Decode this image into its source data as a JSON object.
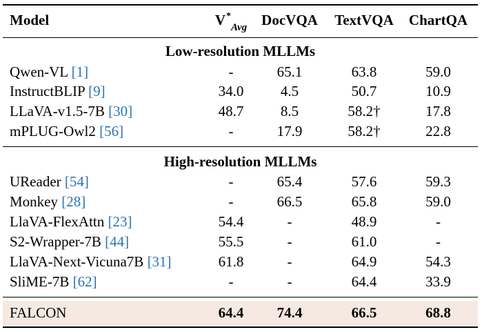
{
  "header": {
    "model": "Model",
    "v_base": "V",
    "v_sup": "*",
    "v_sub": "Avg",
    "docvqa": "DocVQA",
    "textvqa": "TextVQA",
    "chartqa": "ChartQA"
  },
  "sections": {
    "low": "Low-resolution MLLMs",
    "high": "High-resolution MLLMs"
  },
  "low_rows": [
    {
      "name": "Qwen-VL",
      "ref": "[1]",
      "v": "-",
      "doc": "65.1",
      "text": "63.8",
      "chart": "59.0"
    },
    {
      "name": "InstructBLIP",
      "ref": "[9]",
      "v": "34.0",
      "doc": "4.5",
      "text": "50.7",
      "chart": "10.9"
    },
    {
      "name": "LLaVA-v1.5-7B",
      "ref": "[30]",
      "v": "48.7",
      "doc": "8.5",
      "text": "58.2†",
      "chart": "17.8"
    },
    {
      "name": "mPLUG-Owl2",
      "ref": "[56]",
      "v": "-",
      "doc": "17.9",
      "text": "58.2†",
      "chart": "22.8"
    }
  ],
  "high_rows": [
    {
      "name": "UReader",
      "ref": "[54]",
      "v": "-",
      "doc": "65.4",
      "text": "57.6",
      "chart": "59.3"
    },
    {
      "name": "Monkey",
      "ref": "[28]",
      "v": "-",
      "doc": "66.5",
      "text": "65.8",
      "chart": "59.0"
    },
    {
      "name": "LlaVA-FlexAttn",
      "ref": "[23]",
      "v": "54.4",
      "doc": "-",
      "text": "48.9",
      "chart": "-"
    },
    {
      "name": "S2-Wrapper-7B",
      "ref": "[44]",
      "v": "55.5",
      "doc": "-",
      "text": "61.0",
      "chart": "-"
    },
    {
      "name": "LlaVA-Next-Vicuna7B",
      "ref": "[31]",
      "v": "61.8",
      "doc": "-",
      "text": "64.9",
      "chart": "54.3"
    },
    {
      "name": "SliME-7B",
      "ref": "[62]",
      "v": "-",
      "doc": "-",
      "text": "64.4",
      "chart": "33.9"
    }
  ],
  "falcon": {
    "name": "FALCON",
    "v": "64.4",
    "doc": "74.4",
    "text": "66.5",
    "chart": "68.8"
  },
  "colors": {
    "reference_link": "#2b73b4",
    "highlight_row": "#f6e9e1"
  }
}
